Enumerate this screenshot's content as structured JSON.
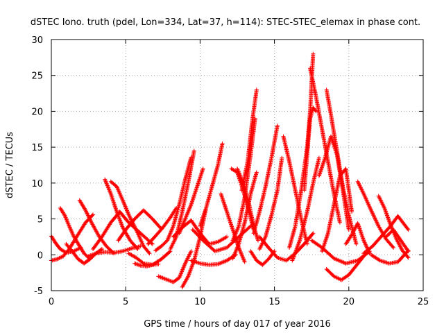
{
  "chart_data": {
    "type": "scatter",
    "title": "dSTEC Iono. truth (pdel, Lon=334, Lat=37, h=114): STEC-STEC_elemax in phase cont.",
    "xlabel": "GPS time / hours of day 017 of year 2016",
    "ylabel": "dSTEC  / TECUs",
    "xlim": [
      0,
      25
    ],
    "ylim": [
      -5,
      30
    ],
    "xticks": [
      "0",
      "5",
      "10",
      "15",
      "20",
      "25"
    ],
    "yticks": [
      "-5",
      "0",
      "5",
      "10",
      "15",
      "20",
      "25",
      "30"
    ],
    "grid": true,
    "marker": "+",
    "color": "#ff0000",
    "series": [
      {
        "x": [
          0.0,
          0.3,
          0.6,
          1.0,
          1.5,
          2.0
        ],
        "y": [
          2.6,
          1.6,
          0.8,
          0.3,
          0.5,
          1.0
        ]
      },
      {
        "x": [
          0.0,
          0.4,
          0.8,
          1.2,
          1.7,
          2.3,
          2.8
        ],
        "y": [
          -0.8,
          -0.6,
          -0.2,
          0.8,
          2.5,
          4.5,
          5.6
        ]
      },
      {
        "x": [
          0.6,
          0.9,
          1.2,
          1.5,
          1.9,
          2.2,
          2.6
        ],
        "y": [
          6.5,
          5.5,
          4.0,
          2.6,
          1.2,
          0.2,
          -0.6
        ]
      },
      {
        "x": [
          1.0,
          1.4,
          1.8,
          2.2,
          2.6,
          3.0,
          3.4
        ],
        "y": [
          1.5,
          0.5,
          -0.6,
          -1.2,
          -0.6,
          0.2,
          0.8
        ]
      },
      {
        "x": [
          1.9,
          2.3,
          2.7,
          3.2,
          3.7,
          4.2
        ],
        "y": [
          7.6,
          6.2,
          4.5,
          2.6,
          1.2,
          0.2
        ]
      },
      {
        "x": [
          2.5,
          3.0,
          3.6,
          4.2,
          4.8,
          5.4,
          6.0
        ],
        "y": [
          -0.2,
          0.2,
          0.4,
          0.3,
          0.5,
          0.9,
          1.2
        ]
      },
      {
        "x": [
          2.8,
          3.4,
          4.0,
          4.6,
          5.2,
          6.0,
          6.8
        ],
        "y": [
          0.8,
          2.5,
          4.5,
          6.0,
          4.5,
          3.0,
          1.5
        ]
      },
      {
        "x": [
          3.6,
          4.0,
          4.4,
          4.8,
          5.3,
          5.8
        ],
        "y": [
          10.5,
          8.5,
          6.0,
          3.8,
          2.0,
          0.8
        ]
      },
      {
        "x": [
          4.0,
          4.4,
          4.8,
          5.2,
          5.7,
          6.2,
          6.6
        ],
        "y": [
          10.2,
          9.5,
          7.6,
          5.6,
          3.5,
          1.2,
          0.2
        ]
      },
      {
        "x": [
          4.5,
          5.0,
          5.6,
          6.2,
          6.8,
          7.4
        ],
        "y": [
          2.0,
          3.5,
          5.0,
          6.2,
          5.0,
          3.6
        ]
      },
      {
        "x": [
          5.2,
          5.7,
          6.2,
          6.8,
          7.4,
          8.0
        ],
        "y": [
          0.2,
          -0.4,
          -1.2,
          -1.4,
          -0.6,
          0.5
        ]
      },
      {
        "x": [
          5.6,
          6.0,
          6.4,
          6.8,
          7.2
        ],
        "y": [
          -1.2,
          -1.5,
          -1.6,
          -1.4,
          -1.3
        ]
      },
      {
        "x": [
          6.5,
          7.0,
          7.5,
          8.0,
          8.4
        ],
        "y": [
          1.5,
          2.6,
          3.8,
          5.2,
          6.5
        ]
      },
      {
        "x": [
          7.2,
          7.7,
          8.2,
          8.6,
          9.0,
          9.4
        ],
        "y": [
          -3.0,
          -3.4,
          -3.8,
          -3.2,
          -1.2,
          0.5
        ]
      },
      {
        "x": [
          7.0,
          7.4,
          7.8,
          8.2,
          8.6,
          9.0,
          9.4
        ],
        "y": [
          0.6,
          1.2,
          2.0,
          4.0,
          7.0,
          10.5,
          13.6
        ]
      },
      {
        "x": [
          8.0,
          8.4,
          8.8,
          9.2,
          9.6
        ],
        "y": [
          0.8,
          2.5,
          6.0,
          10.0,
          14.5
        ]
      },
      {
        "x": [
          8.8,
          9.2,
          9.6,
          10.0,
          10.4
        ],
        "y": [
          -4.5,
          -3.0,
          -0.8,
          2.5,
          6.5
        ]
      },
      {
        "x": [
          8.6,
          9.0,
          9.4,
          9.8,
          10.2
        ],
        "y": [
          3.0,
          5.0,
          7.0,
          9.5,
          12.0
        ]
      },
      {
        "x": [
          8.2,
          8.8,
          9.4,
          10.0,
          10.6,
          11.2,
          11.8
        ],
        "y": [
          2.5,
          3.8,
          4.8,
          3.0,
          1.5,
          1.8,
          2.5
        ]
      },
      {
        "x": [
          10.0,
          10.4,
          10.8,
          11.2,
          11.5
        ],
        "y": [
          4.0,
          6.5,
          9.5,
          12.5,
          15.5
        ]
      },
      {
        "x": [
          9.4,
          10.0,
          10.6,
          11.2,
          11.8,
          12.4
        ],
        "y": [
          -0.8,
          -1.2,
          -1.4,
          -1.3,
          -0.8,
          0.0
        ]
      },
      {
        "x": [
          9.5,
          10.2,
          11.0,
          11.8,
          12.6,
          13.4
        ],
        "y": [
          3.5,
          2.0,
          0.5,
          1.0,
          2.5,
          4.0
        ]
      },
      {
        "x": [
          11.4,
          11.8,
          12.2,
          12.6,
          13.0
        ],
        "y": [
          8.5,
          6.0,
          3.5,
          1.0,
          -1.0
        ]
      },
      {
        "x": [
          12.1,
          12.5,
          12.9,
          13.3,
          13.6
        ],
        "y": [
          12.0,
          11.5,
          9.0,
          6.0,
          3.5
        ]
      },
      {
        "x": [
          12.5,
          12.9,
          13.3,
          13.6,
          13.9
        ],
        "y": [
          12.0,
          10.0,
          7.0,
          4.0,
          2.0
        ]
      },
      {
        "x": [
          12.2,
          12.6,
          13.0,
          13.4,
          13.8
        ],
        "y": [
          -0.5,
          1.5,
          4.5,
          8.5,
          11.5
        ]
      },
      {
        "x": [
          12.2,
          12.6,
          13.0,
          13.4,
          13.7
        ],
        "y": [
          2.0,
          4.0,
          8.0,
          14.0,
          19.0
        ]
      },
      {
        "x": [
          12.8,
          13.2,
          13.5,
          13.8
        ],
        "y": [
          9.0,
          13.0,
          18.5,
          23.0
        ]
      },
      {
        "x": [
          13.4,
          13.8,
          14.2,
          14.6,
          15.0
        ],
        "y": [
          0.5,
          -0.8,
          -1.4,
          -0.6,
          0.5
        ]
      },
      {
        "x": [
          13.6,
          14.0,
          14.4,
          14.8,
          15.2
        ],
        "y": [
          3.0,
          6.0,
          9.5,
          13.5,
          18.0
        ]
      },
      {
        "x": [
          14.0,
          14.4,
          14.8,
          15.2,
          15.5
        ],
        "y": [
          0.8,
          2.5,
          5.5,
          9.0,
          13.5
        ]
      },
      {
        "x": [
          14.0,
          14.6,
          15.2,
          15.8,
          16.4,
          17.0,
          17.6
        ],
        "y": [
          2.5,
          1.0,
          -0.4,
          -0.8,
          0.2,
          1.5,
          3.0
        ]
      },
      {
        "x": [
          15.6,
          16.0,
          16.4,
          16.8,
          17.2
        ],
        "y": [
          16.5,
          13.0,
          9.0,
          5.0,
          1.5
        ]
      },
      {
        "x": [
          16.2,
          16.7,
          17.2,
          17.6,
          18.0
        ],
        "y": [
          -0.8,
          2.0,
          6.0,
          10.0,
          13.5
        ]
      },
      {
        "x": [
          16.0,
          16.4,
          16.8,
          17.2,
          17.4,
          17.6
        ],
        "y": [
          1.0,
          4.0,
          9.0,
          15.0,
          20.0,
          28.0
        ]
      },
      {
        "x": [
          17.0,
          17.2,
          17.4,
          17.6,
          17.8
        ],
        "y": [
          9.0,
          14.0,
          19.0,
          20.5,
          20.0
        ]
      },
      {
        "x": [
          17.4,
          17.8,
          18.2,
          18.6,
          19.0,
          19.4
        ],
        "y": [
          26.0,
          22.0,
          17.5,
          13.0,
          8.5,
          4.5
        ]
      },
      {
        "x": [
          18.0,
          18.4,
          18.8,
          19.2,
          19.6,
          20.0
        ],
        "y": [
          11.0,
          13.5,
          16.5,
          14.0,
          9.0,
          3.5
        ]
      },
      {
        "x": [
          18.2,
          18.6,
          19.0,
          19.4,
          19.8,
          20.2
        ],
        "y": [
          0.5,
          3.0,
          7.0,
          11.0,
          12.0,
          6.0
        ]
      },
      {
        "x": [
          18.5,
          18.8,
          19.2,
          19.6,
          20.0,
          20.5
        ],
        "y": [
          23.0,
          19.5,
          14.5,
          9.5,
          5.5,
          1.5
        ]
      },
      {
        "x": [
          18.5,
          19.0,
          19.5,
          20.0,
          20.5,
          21.0
        ],
        "y": [
          -2.0,
          -3.0,
          -3.5,
          -2.8,
          -1.5,
          -0.2
        ]
      },
      {
        "x": [
          17.5,
          18.2,
          19.0,
          19.8,
          20.6,
          21.4
        ],
        "y": [
          2.0,
          1.0,
          -0.5,
          -1.2,
          -0.8,
          0.5
        ]
      },
      {
        "x": [
          20.6,
          21.0,
          21.5,
          22.0,
          22.5,
          23.0
        ],
        "y": [
          10.2,
          8.5,
          6.2,
          4.0,
          2.2,
          1.0
        ]
      },
      {
        "x": [
          19.8,
          20.2,
          20.6,
          21.0,
          21.4
        ],
        "y": [
          1.5,
          2.8,
          4.4,
          2.0,
          0.2
        ]
      },
      {
        "x": [
          21.0,
          21.6,
          22.2,
          22.8,
          23.3,
          24.0
        ],
        "y": [
          0.2,
          1.2,
          2.6,
          4.0,
          5.4,
          3.5
        ]
      },
      {
        "x": [
          22.0,
          22.4,
          22.8,
          23.2,
          23.6,
          24.0
        ],
        "y": [
          8.2,
          6.5,
          4.2,
          2.2,
          0.6,
          -0.4
        ]
      },
      {
        "x": [
          21.5,
          22.1,
          22.7,
          23.3,
          24.0
        ],
        "y": [
          0.0,
          -0.8,
          -1.2,
          -1.0,
          0.6
        ]
      },
      {
        "x": [
          22.5,
          23.0,
          23.5,
          24.0
        ],
        "y": [
          2.5,
          3.5,
          2.0,
          0.5
        ]
      }
    ]
  }
}
